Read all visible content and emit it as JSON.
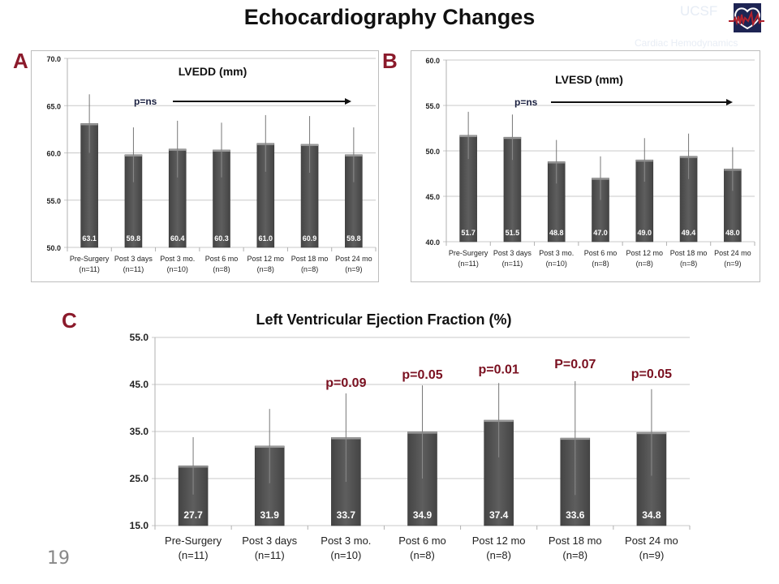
{
  "slide": {
    "title": "Echocardiography Changes",
    "slide_number": "19",
    "logo": {
      "text": "UCSF",
      "subtitle": "Cardiac Hemodynamics",
      "icon": "heart-ecg-logo-icon"
    },
    "panel_labels": [
      "A",
      "B",
      "C"
    ],
    "colors": {
      "bar": "#555555",
      "accent": "#8b1a2b",
      "annotation_dark": "#1a2040",
      "pvalue": "#7a1020"
    }
  },
  "chart_data": [
    {
      "type": "bar",
      "panel": "A",
      "title": "LVEDD (mm)",
      "xlabel": "",
      "ylabel": "",
      "ylim": [
        50,
        70
      ],
      "yticks": [
        "50.0",
        "55.0",
        "60.0",
        "65.0",
        "70.0"
      ],
      "grid": true,
      "categories": [
        "Pre-Surgery",
        "Post 3 days",
        "Post 3 mo.",
        "Post 6 mo",
        "Post 12 mo",
        "Post 18 mo",
        "Post 24 mo"
      ],
      "category_n": [
        "(n=11)",
        "(n=11)",
        "(n=10)",
        "(n=8)",
        "(n=8)",
        "(n=8)",
        "(n=9)"
      ],
      "values": [
        63.1,
        59.8,
        60.4,
        60.3,
        61.0,
        60.9,
        59.8
      ],
      "value_labels": [
        "63.1",
        "59.8",
        "60.4",
        "60.3",
        "61.0",
        "60.9",
        "59.8"
      ],
      "error_upper": [
        66.2,
        62.7,
        63.4,
        63.2,
        64.0,
        63.9,
        62.7
      ],
      "annotation": {
        "text": "p=ns",
        "arrow": true
      }
    },
    {
      "type": "bar",
      "panel": "B",
      "title": "LVESD (mm)",
      "xlabel": "",
      "ylabel": "",
      "ylim": [
        40,
        60
      ],
      "yticks": [
        "40.0",
        "45.0",
        "50.0",
        "55.0",
        "60.0"
      ],
      "grid": true,
      "categories": [
        "Pre-Surgery",
        "Post 3 days",
        "Post 3 mo.",
        "Post 6 mo",
        "Post 12 mo",
        "Post 18 mo",
        "Post 24 mo"
      ],
      "category_n": [
        "(n=11)",
        "(n=11)",
        "(n=10)",
        "(n=8)",
        "(n=8)",
        "(n=8)",
        "(n=9)"
      ],
      "values": [
        51.7,
        51.5,
        48.8,
        47.0,
        49.0,
        49.4,
        48.0
      ],
      "value_labels": [
        "51.7",
        "51.5",
        "48.8",
        "47.0",
        "49.0",
        "49.4",
        "48.0"
      ],
      "error_upper": [
        54.3,
        54.0,
        51.2,
        49.4,
        51.4,
        51.9,
        50.4
      ],
      "annotation": {
        "text": "p=ns",
        "arrow": true
      }
    },
    {
      "type": "bar",
      "panel": "C",
      "title": "Left Ventricular Ejection Fraction (%)",
      "xlabel": "",
      "ylabel": "",
      "ylim": [
        15,
        55
      ],
      "yticks": [
        "15.0",
        "25.0",
        "35.0",
        "45.0",
        "55.0"
      ],
      "grid": true,
      "categories": [
        "Pre-Surgery",
        "Post 3 days",
        "Post 3 mo.",
        "Post 6 mo",
        "Post 12 mo",
        "Post 18 mo",
        "Post 24 mo"
      ],
      "category_n": [
        "(n=11)",
        "(n=11)",
        "(n=10)",
        "(n=8)",
        "(n=8)",
        "(n=8)",
        "(n=9)"
      ],
      "values": [
        27.7,
        31.9,
        33.7,
        34.9,
        37.4,
        33.6,
        34.8
      ],
      "value_labels": [
        "27.7",
        "31.9",
        "33.7",
        "34.9",
        "37.4",
        "33.6",
        "34.8"
      ],
      "error_upper": [
        33.8,
        39.8,
        43.1,
        44.8,
        45.3,
        45.7,
        44.0
      ],
      "p_values": [
        "",
        "",
        "p=0.09",
        "p=0.05",
        "p=0.01",
        "P=0.07",
        "p=0.05"
      ]
    }
  ]
}
